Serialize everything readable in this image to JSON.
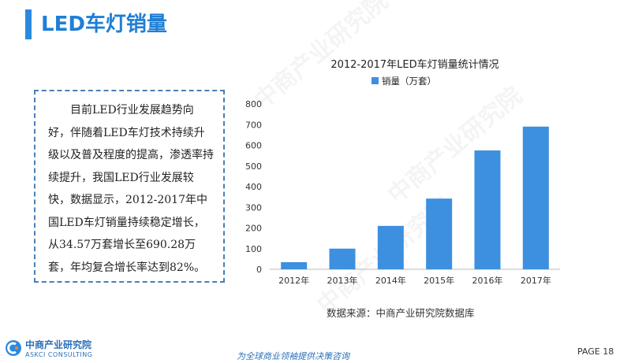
{
  "header": {
    "title": "LED车灯销量"
  },
  "description": "目前LED行业发展趋势向好，伴随着LED车灯技术持续升级以及普及程度的提高，渗透率持续提升，我国LED行业发展较快，数据显示，2012-2017年中国LED车灯销量持续稳定增长，从34.57万套增长至690.28万套，年均复合增长率达到82%。",
  "chart_data": {
    "type": "bar",
    "title": "2012-2017年LED车灯销量统计情况",
    "legend": "销量（万套）",
    "legend_position": "top-left",
    "categories": [
      "2012年",
      "2013年",
      "2014年",
      "2015年",
      "2016年",
      "2017年"
    ],
    "series": [
      {
        "name": "销量（万套）",
        "values": [
          34.57,
          100,
          210,
          342,
          575,
          690.28
        ]
      }
    ],
    "ylim": [
      0,
      800
    ],
    "yticks": [
      0,
      100,
      200,
      300,
      400,
      500,
      600,
      700,
      800
    ],
    "ytick_labels": [
      "0",
      "100",
      "200",
      "300",
      "400",
      "500",
      "600",
      "700",
      "800"
    ],
    "grid": false,
    "bar_color": "#3d8fdf"
  },
  "source": "数据来源：中商产业研究院数据库",
  "footer": {
    "org": "中商产业研究院",
    "org_en": "ASKCI CONSULTING",
    "slogan": "为全球商业领袖提供决策咨询",
    "page": "PAGE 18"
  },
  "colors": {
    "accent": "#2a8ae0",
    "text": "#222222"
  }
}
